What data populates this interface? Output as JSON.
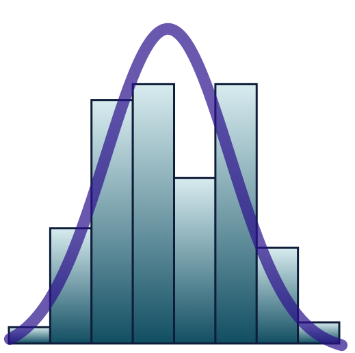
{
  "chart_data": {
    "type": "bar",
    "subtype": "histogram-with-normal-curve",
    "title": "",
    "xlabel": "",
    "ylabel": "",
    "bins": 8,
    "values": [
      1,
      7.1,
      15,
      16,
      10.2,
      16,
      5.9,
      1.3
    ],
    "ylim": [
      0,
      20
    ],
    "curve": {
      "type": "normal",
      "peak_value": 19.4,
      "peak_position": 3.85,
      "spread": 1.5,
      "baseline": -0.5
    },
    "grid": false,
    "legend": "none",
    "colors": {
      "bar_top": "#d8ecef",
      "bar_bottom": "#114e62",
      "bar_stroke": "#0e1e3a",
      "curve": "#2b0f8c",
      "curve_opacity": 0.7
    }
  }
}
